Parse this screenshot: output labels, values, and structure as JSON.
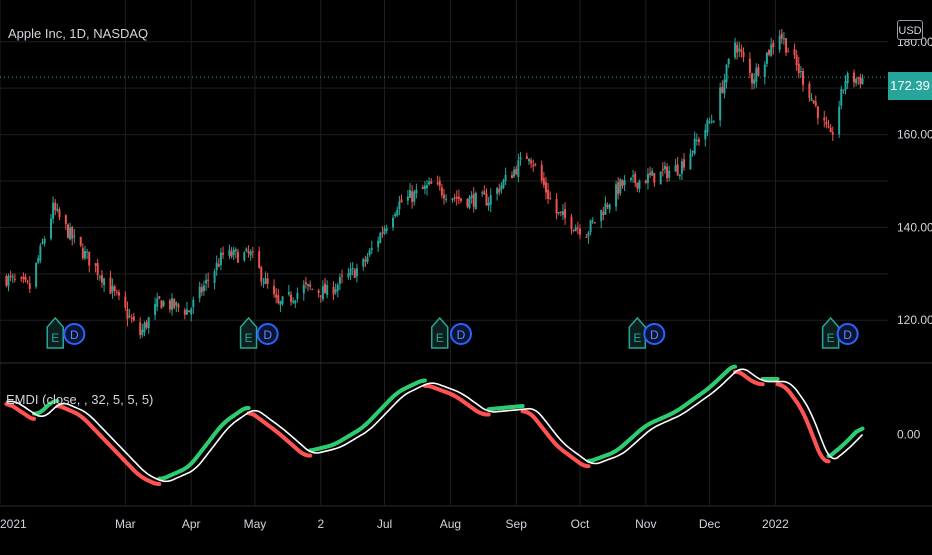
{
  "symbol_legend": "Apple Inc, 1D, NASDAQ",
  "indicator_legend": "EMDI (close, , 32, 5, 5, 5)",
  "currency": "USD",
  "last_price_label": "172.39",
  "colors": {
    "background": "#000000",
    "grid": "#1f1f1f",
    "up": "#26a69a",
    "down": "#ef5350",
    "price_line": "#26a69a",
    "osc_up": "#2ecc71",
    "osc_down": "#ff5252",
    "osc_signal": "#ffffff",
    "event_earnings": "#26a69a",
    "event_dividend": "#2962ff"
  },
  "chart_data": [
    {
      "type": "candlestick",
      "title": "Apple Inc, 1D, NASDAQ",
      "ylabel": "USD",
      "ylim": [
        111,
        189
      ],
      "y_ticks": [
        "120.00",
        "140.00",
        "160.00",
        "180.00"
      ],
      "x_ticks": [
        "2021",
        "Mar",
        "Apr",
        "May",
        "2",
        "Jul",
        "Aug",
        "Sep",
        "Oct",
        "Nov",
        "Dec",
        "2022"
      ],
      "grid": true,
      "last_price": 172.39,
      "close_path": [
        {
          "date": "2021-01-04",
          "close": 129
        },
        {
          "date": "2021-01-15",
          "close": 127
        },
        {
          "date": "2021-01-26",
          "close": 144
        },
        {
          "date": "2021-02-05",
          "close": 137
        },
        {
          "date": "2021-02-19",
          "close": 129
        },
        {
          "date": "2021-03-08",
          "close": 117
        },
        {
          "date": "2021-03-17",
          "close": 124
        },
        {
          "date": "2021-03-31",
          "close": 122
        },
        {
          "date": "2021-04-16",
          "close": 134
        },
        {
          "date": "2021-04-29",
          "close": 134
        },
        {
          "date": "2021-05-12",
          "close": 123
        },
        {
          "date": "2021-05-24",
          "close": 127
        },
        {
          "date": "2021-06-04",
          "close": 126
        },
        {
          "date": "2021-06-21",
          "close": 132
        },
        {
          "date": "2021-07-07",
          "close": 145
        },
        {
          "date": "2021-07-23",
          "close": 149
        },
        {
          "date": "2021-08-06",
          "close": 146
        },
        {
          "date": "2021-08-19",
          "close": 146
        },
        {
          "date": "2021-09-07",
          "close": 156
        },
        {
          "date": "2021-09-20",
          "close": 143
        },
        {
          "date": "2021-10-04",
          "close": 139
        },
        {
          "date": "2021-10-20",
          "close": 149
        },
        {
          "date": "2021-11-05",
          "close": 151
        },
        {
          "date": "2021-11-17",
          "close": 153
        },
        {
          "date": "2021-12-03",
          "close": 164
        },
        {
          "date": "2021-12-13",
          "close": 180
        },
        {
          "date": "2021-12-21",
          "close": 172
        },
        {
          "date": "2022-01-03",
          "close": 182
        },
        {
          "date": "2022-01-14",
          "close": 172
        },
        {
          "date": "2022-01-27",
          "close": 159
        },
        {
          "date": "2022-02-03",
          "close": 172
        },
        {
          "date": "2022-02-11",
          "close": 172
        }
      ],
      "events": [
        {
          "date": "2021-01-27",
          "type": "earnings",
          "label": "E"
        },
        {
          "date": "2021-02-05",
          "type": "dividend",
          "label": "D"
        },
        {
          "date": "2021-04-28",
          "type": "earnings",
          "label": "E"
        },
        {
          "date": "2021-05-07",
          "type": "dividend",
          "label": "D"
        },
        {
          "date": "2021-07-27",
          "type": "earnings",
          "label": "E"
        },
        {
          "date": "2021-08-06",
          "type": "dividend",
          "label": "D"
        },
        {
          "date": "2021-10-28",
          "type": "earnings",
          "label": "E"
        },
        {
          "date": "2021-11-05",
          "type": "dividend",
          "label": "D"
        },
        {
          "date": "2022-01-27",
          "type": "earnings",
          "label": "E"
        },
        {
          "date": "2022-02-04",
          "type": "dividend",
          "label": "D"
        }
      ]
    },
    {
      "type": "line",
      "title": "EMDI (close, , 32, 5, 5, 5)",
      "y_ticks": [
        "0.00"
      ],
      "ylim": [
        -1.6,
        1.6
      ],
      "series": [
        {
          "values": [
            {
              "date": "2021-01-04",
              "value": 0.8
            },
            {
              "date": "2021-01-18",
              "value": 0.35
            },
            {
              "date": "2021-01-27",
              "value": 0.75
            },
            {
              "date": "2021-02-08",
              "value": 0.5
            },
            {
              "date": "2021-02-22",
              "value": -0.2
            },
            {
              "date": "2021-03-08",
              "value": -0.9
            },
            {
              "date": "2021-03-17",
              "value": -1.1
            },
            {
              "date": "2021-03-31",
              "value": -0.8
            },
            {
              "date": "2021-04-16",
              "value": 0.2
            },
            {
              "date": "2021-04-28",
              "value": 0.6
            },
            {
              "date": "2021-05-12",
              "value": 0.1
            },
            {
              "date": "2021-05-25",
              "value": -0.45
            },
            {
              "date": "2021-06-07",
              "value": -0.3
            },
            {
              "date": "2021-06-21",
              "value": 0.1
            },
            {
              "date": "2021-07-07",
              "value": 0.9
            },
            {
              "date": "2021-07-20",
              "value": 1.2
            },
            {
              "date": "2021-08-03",
              "value": 0.95
            },
            {
              "date": "2021-08-16",
              "value": 0.5
            },
            {
              "date": "2021-09-07",
              "value": 0.6
            },
            {
              "date": "2021-09-20",
              "value": -0.2
            },
            {
              "date": "2021-10-04",
              "value": -0.7
            },
            {
              "date": "2021-10-18",
              "value": -0.45
            },
            {
              "date": "2021-11-01",
              "value": 0.15
            },
            {
              "date": "2021-11-15",
              "value": 0.45
            },
            {
              "date": "2021-12-01",
              "value": 1.0
            },
            {
              "date": "2021-12-13",
              "value": 1.55
            },
            {
              "date": "2021-12-23",
              "value": 1.2
            },
            {
              "date": "2022-01-05",
              "value": 1.2
            },
            {
              "date": "2022-01-14",
              "value": 0.6
            },
            {
              "date": "2022-01-24",
              "value": -0.65
            },
            {
              "date": "2022-02-02",
              "value": -0.3
            },
            {
              "date": "2022-02-11",
              "value": 0.15
            }
          ]
        }
      ]
    }
  ]
}
